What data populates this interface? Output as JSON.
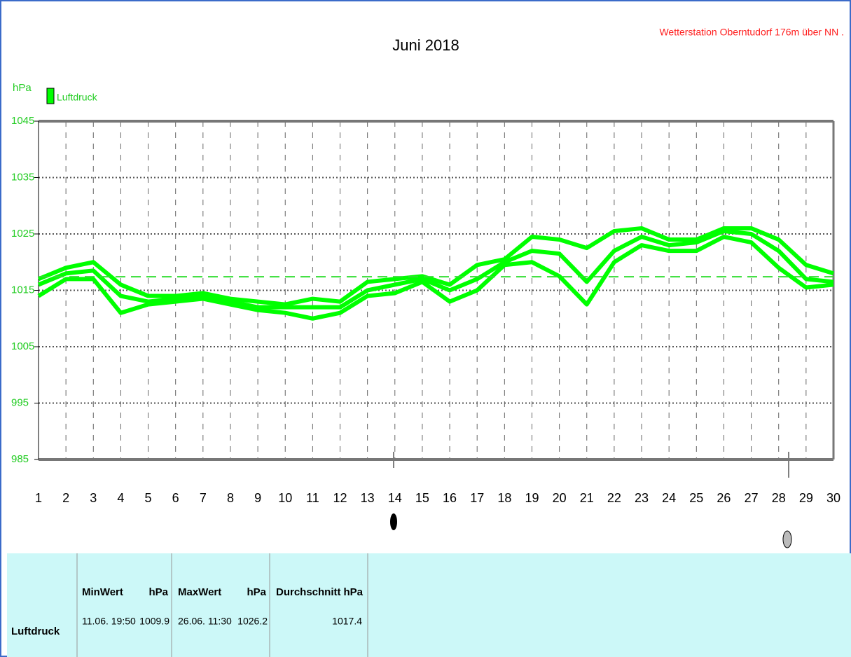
{
  "chart_data": {
    "type": "line",
    "title": "Juni 2018",
    "subtitle": "Wetterstation Oberntudorf 176m über NN .",
    "y_label": "hPa",
    "x": [
      1,
      2,
      3,
      4,
      5,
      6,
      7,
      8,
      9,
      10,
      11,
      12,
      13,
      14,
      15,
      16,
      17,
      18,
      19,
      20,
      21,
      22,
      23,
      24,
      25,
      26,
      27,
      28,
      29,
      30
    ],
    "series": [
      {
        "name": "Luftdruck",
        "color": "#00ff00",
        "values": [
          1016,
          1018,
          1018.5,
          1014,
          1013,
          1013.5,
          1014,
          1013,
          1012,
          1012,
          1012,
          1012,
          1015,
          1016,
          1017,
          1015,
          1017,
          1020,
          1022,
          1021.5,
          1016.5,
          1022,
          1024.5,
          1023,
          1023.5,
          1025.5,
          1025,
          1022,
          1017,
          1016.5
        ]
      },
      {
        "color": "#00ff00",
        "values": [
          1017,
          1019,
          1020,
          1016,
          1014,
          1014,
          1014.5,
          1013.5,
          1013,
          1012.5,
          1013.5,
          1013,
          1016.5,
          1017,
          1017.5,
          1016,
          1019.5,
          1020.5,
          1024.5,
          1024,
          1022.5,
          1025.5,
          1026,
          1024,
          1024,
          1026,
          1026,
          1024,
          1019.5,
          1018
        ]
      },
      {
        "color": "#00ff00",
        "values": [
          1014,
          1017,
          1017,
          1011,
          1012.5,
          1013,
          1013.5,
          1012.5,
          1011.5,
          1011,
          1010,
          1011,
          1014,
          1014.5,
          1016.5,
          1013,
          1015,
          1019.5,
          1020,
          1017.5,
          1012.5,
          1020,
          1023,
          1022,
          1022,
          1024.5,
          1023.5,
          1019,
          1015.5,
          1016
        ]
      }
    ],
    "xlim": [
      1,
      30
    ],
    "xticks": [
      1,
      2,
      3,
      4,
      5,
      6,
      7,
      8,
      9,
      10,
      11,
      12,
      13,
      14,
      15,
      16,
      17,
      18,
      19,
      20,
      21,
      22,
      23,
      24,
      25,
      26,
      27,
      28,
      29,
      30
    ],
    "ylim": [
      985,
      1045
    ],
    "yticks": [
      985,
      995,
      1005,
      1015,
      1025,
      1035,
      1045
    ],
    "grid": true
  },
  "table": {
    "headers": [
      "MinWert",
      "hPa",
      "MaxWert",
      "hPa",
      "Durchschnitt",
      "hPa"
    ],
    "rows": [
      [
        "Luftdruck",
        "11.06. 19:50",
        1009.9,
        "26.06. 11:30",
        1026.2,
        1017.4
      ]
    ]
  }
}
